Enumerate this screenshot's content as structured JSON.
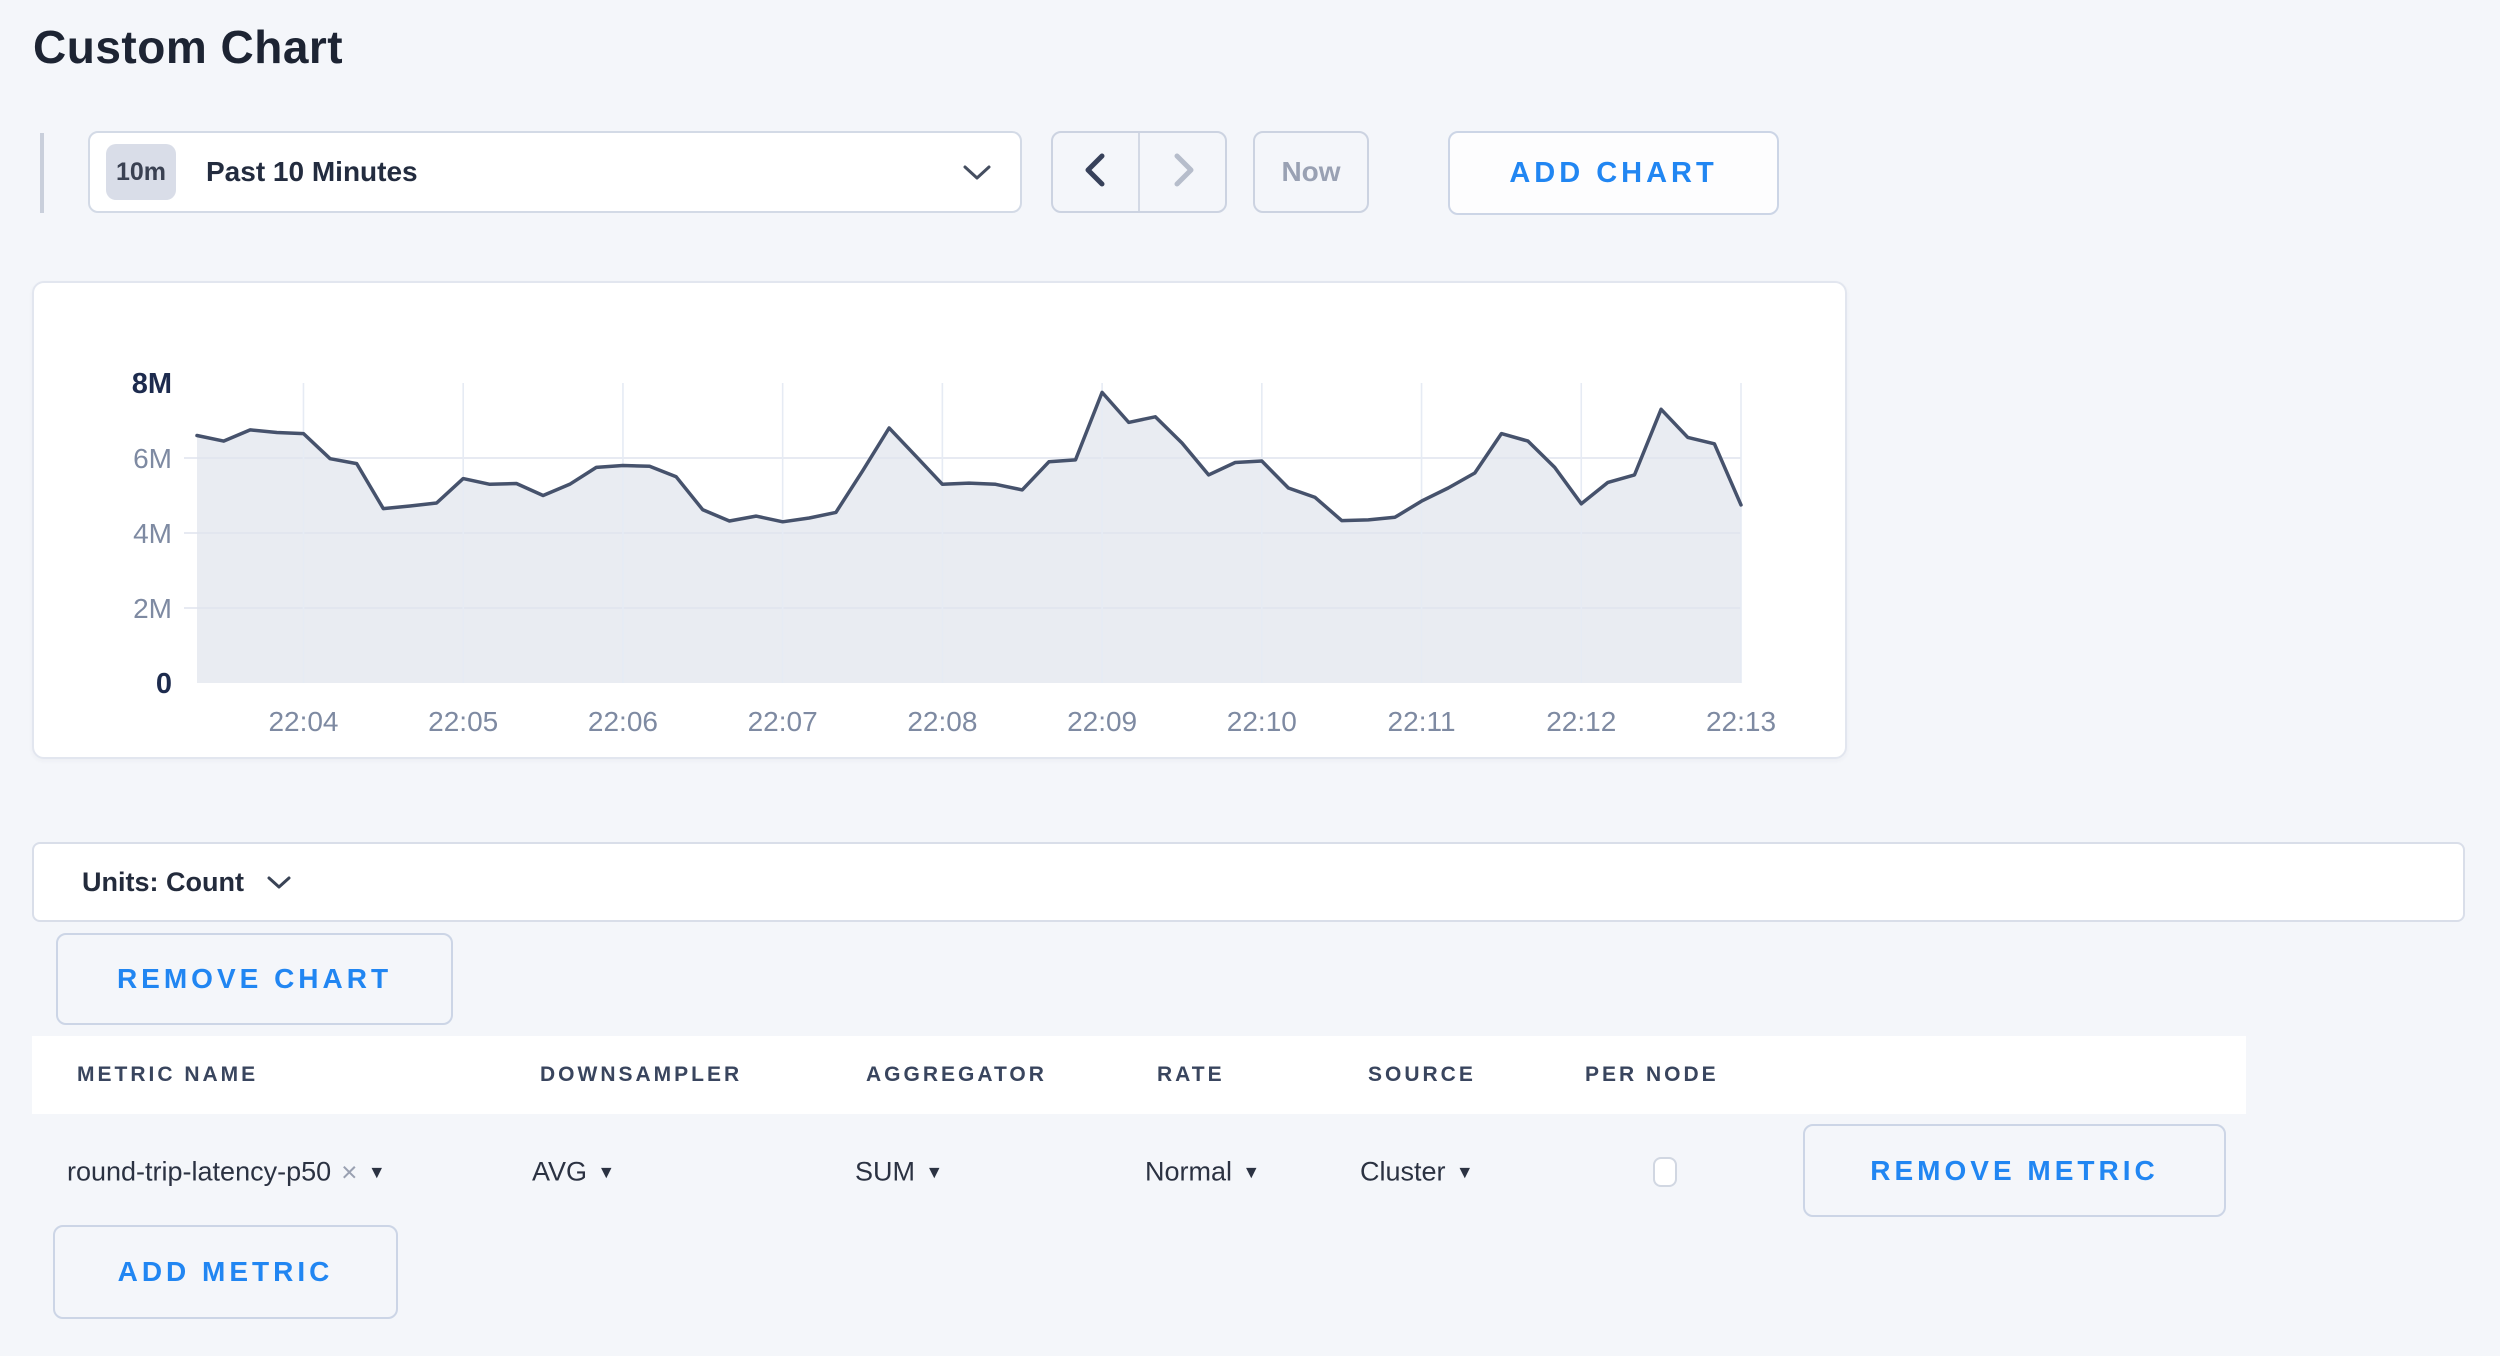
{
  "title": "Custom Chart",
  "toolbar": {
    "time_badge": "10m",
    "time_label": "Past 10 Minutes",
    "now_label": "Now",
    "add_chart_label": "ADD CHART"
  },
  "units_bar": {
    "label": "Units: Count"
  },
  "buttons": {
    "remove_chart": "REMOVE CHART",
    "remove_metric": "REMOVE METRIC",
    "add_metric": "ADD METRIC"
  },
  "table": {
    "headers": [
      "METRIC NAME",
      "DOWNSAMPLER",
      "AGGREGATOR",
      "RATE",
      "SOURCE",
      "PER NODE"
    ],
    "row": {
      "metric_name": "round-trip-latency-p50",
      "downsampler": "AVG",
      "aggregator": "SUM",
      "rate": "Normal",
      "source": "Cluster",
      "per_node_checked": false
    }
  },
  "icons": {
    "caret_down": "▾",
    "clear": "×"
  },
  "colors": {
    "accent_blue": "#2186f2",
    "line": "#46526c",
    "fill": "#e9ecf2",
    "grid_h": "#dfe4ee",
    "grid_v": "#e6ebf4",
    "page_bg": "#f4f6fa"
  },
  "chart_data": {
    "type": "area",
    "title": "",
    "xlabel": "",
    "ylabel": "Count",
    "grid": true,
    "legend": "none",
    "ylim": [
      0,
      8
    ],
    "value_scale": "millions",
    "y_ticks": [
      {
        "label": "8M",
        "value": 8,
        "strong": true
      },
      {
        "label": "6M",
        "value": 6,
        "strong": false
      },
      {
        "label": "4M",
        "value": 4,
        "strong": false
      },
      {
        "label": "2M",
        "value": 2,
        "strong": false
      },
      {
        "label": "0",
        "value": 0,
        "strong": true
      }
    ],
    "x_tick_labels": [
      "22:04",
      "22:05",
      "22:06",
      "22:07",
      "22:08",
      "22:09",
      "22:10",
      "22:11",
      "22:12",
      "22:13"
    ],
    "series": [
      {
        "name": "round-trip-latency-p50",
        "points": [
          {
            "t": "22:03:20",
            "v": 6.6
          },
          {
            "t": "22:03:30",
            "v": 6.45
          },
          {
            "t": "22:03:40",
            "v": 6.75
          },
          {
            "t": "22:03:50",
            "v": 6.68
          },
          {
            "t": "22:04:00",
            "v": 6.65
          },
          {
            "t": "22:04:10",
            "v": 5.98
          },
          {
            "t": "22:04:20",
            "v": 5.85
          },
          {
            "t": "22:04:30",
            "v": 4.65
          },
          {
            "t": "22:04:40",
            "v": 4.72
          },
          {
            "t": "22:04:50",
            "v": 4.8
          },
          {
            "t": "22:05:00",
            "v": 5.45
          },
          {
            "t": "22:05:10",
            "v": 5.3
          },
          {
            "t": "22:05:20",
            "v": 5.32
          },
          {
            "t": "22:05:30",
            "v": 5.0
          },
          {
            "t": "22:05:40",
            "v": 5.3
          },
          {
            "t": "22:05:50",
            "v": 5.75
          },
          {
            "t": "22:06:00",
            "v": 5.8
          },
          {
            "t": "22:06:10",
            "v": 5.78
          },
          {
            "t": "22:06:20",
            "v": 5.5
          },
          {
            "t": "22:06:30",
            "v": 4.62
          },
          {
            "t": "22:06:40",
            "v": 4.32
          },
          {
            "t": "22:06:50",
            "v": 4.45
          },
          {
            "t": "22:07:00",
            "v": 4.3
          },
          {
            "t": "22:07:10",
            "v": 4.4
          },
          {
            "t": "22:07:20",
            "v": 4.55
          },
          {
            "t": "22:07:30",
            "v": 5.65
          },
          {
            "t": "22:07:40",
            "v": 6.8
          },
          {
            "t": "22:07:50",
            "v": 6.05
          },
          {
            "t": "22:08:00",
            "v": 5.3
          },
          {
            "t": "22:08:10",
            "v": 5.33
          },
          {
            "t": "22:08:20",
            "v": 5.3
          },
          {
            "t": "22:08:30",
            "v": 5.15
          },
          {
            "t": "22:08:40",
            "v": 5.9
          },
          {
            "t": "22:08:50",
            "v": 5.95
          },
          {
            "t": "22:09:00",
            "v": 7.75
          },
          {
            "t": "22:09:10",
            "v": 6.95
          },
          {
            "t": "22:09:20",
            "v": 7.1
          },
          {
            "t": "22:09:30",
            "v": 6.4
          },
          {
            "t": "22:09:40",
            "v": 5.55
          },
          {
            "t": "22:09:50",
            "v": 5.88
          },
          {
            "t": "22:10:00",
            "v": 5.92
          },
          {
            "t": "22:10:10",
            "v": 5.2
          },
          {
            "t": "22:10:20",
            "v": 4.95
          },
          {
            "t": "22:10:30",
            "v": 4.33
          },
          {
            "t": "22:10:40",
            "v": 4.35
          },
          {
            "t": "22:10:50",
            "v": 4.42
          },
          {
            "t": "22:11:00",
            "v": 4.85
          },
          {
            "t": "22:11:10",
            "v": 5.2
          },
          {
            "t": "22:11:20",
            "v": 5.6
          },
          {
            "t": "22:11:30",
            "v": 6.65
          },
          {
            "t": "22:11:40",
            "v": 6.45
          },
          {
            "t": "22:11:50",
            "v": 5.75
          },
          {
            "t": "22:12:00",
            "v": 4.78
          },
          {
            "t": "22:12:10",
            "v": 5.35
          },
          {
            "t": "22:12:20",
            "v": 5.55
          },
          {
            "t": "22:12:30",
            "v": 7.3
          },
          {
            "t": "22:12:40",
            "v": 6.55
          },
          {
            "t": "22:12:50",
            "v": 6.38
          },
          {
            "t": "22:13:00",
            "v": 4.75
          }
        ]
      }
    ]
  }
}
